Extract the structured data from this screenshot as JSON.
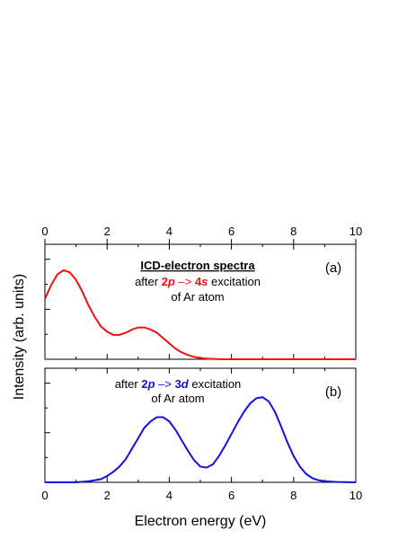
{
  "chart_data": [
    {
      "type": "line",
      "panel_tag": "(a)",
      "annotation": {
        "title": "ICD-electron spectra",
        "line1": {
          "pre": "after ",
          "a": "2",
          "b": "p",
          "arrow": " –> ",
          "c": "4",
          "d": "s",
          "post": " excitation"
        },
        "line2": "of Ar atom",
        "accent": "#ee1111"
      },
      "series": [
        {
          "color": "#ee1111",
          "x": [
            0,
            0.2,
            0.4,
            0.6,
            0.8,
            1.0,
            1.2,
            1.4,
            1.6,
            1.8,
            2.0,
            2.2,
            2.4,
            2.6,
            2.8,
            3.0,
            3.2,
            3.4,
            3.6,
            3.8,
            4.0,
            4.2,
            4.4,
            4.6,
            4.8,
            5.0,
            5.2,
            5.4,
            5.6,
            6.0,
            7.0,
            8.0,
            9.0,
            10.0
          ],
          "y": [
            0.57,
            0.7,
            0.8,
            0.84,
            0.82,
            0.75,
            0.64,
            0.51,
            0.4,
            0.31,
            0.26,
            0.23,
            0.23,
            0.25,
            0.28,
            0.3,
            0.3,
            0.28,
            0.25,
            0.2,
            0.15,
            0.1,
            0.065,
            0.04,
            0.022,
            0.012,
            0.006,
            0.003,
            0.001,
            0,
            0,
            0,
            0,
            0
          ]
        }
      ],
      "xlim": [
        0,
        10
      ],
      "ylim": [
        0,
        1
      ],
      "xticks": [
        "0",
        "2",
        "4",
        "6",
        "8",
        "10"
      ],
      "grid": false
    },
    {
      "type": "line",
      "panel_tag": "(b)",
      "annotation": {
        "line1": {
          "pre": "after ",
          "a": "2",
          "b": "p",
          "arrow": " –> ",
          "c": "3",
          "d": "d",
          "post": " excitation"
        },
        "line2": "of Ar atom",
        "accent": "#1111dd"
      },
      "series": [
        {
          "color": "#1111dd",
          "x": [
            0,
            1.0,
            1.4,
            1.8,
            2.0,
            2.2,
            2.4,
            2.6,
            2.8,
            3.0,
            3.2,
            3.4,
            3.6,
            3.8,
            4.0,
            4.2,
            4.4,
            4.6,
            4.8,
            5.0,
            5.2,
            5.4,
            5.6,
            5.8,
            6.0,
            6.2,
            6.4,
            6.6,
            6.8,
            7.0,
            7.2,
            7.4,
            7.6,
            7.8,
            8.0,
            8.2,
            8.4,
            8.6,
            8.8,
            9.0,
            9.4,
            10.0
          ],
          "y": [
            0,
            0,
            0.01,
            0.03,
            0.06,
            0.1,
            0.15,
            0.22,
            0.32,
            0.42,
            0.52,
            0.58,
            0.62,
            0.62,
            0.58,
            0.5,
            0.4,
            0.3,
            0.21,
            0.15,
            0.14,
            0.17,
            0.25,
            0.35,
            0.46,
            0.57,
            0.67,
            0.75,
            0.8,
            0.81,
            0.77,
            0.67,
            0.53,
            0.38,
            0.25,
            0.15,
            0.08,
            0.04,
            0.02,
            0.01,
            0.003,
            0
          ]
        }
      ],
      "xlim": [
        0,
        10
      ],
      "ylim": [
        0,
        1
      ],
      "xticks": [
        "0",
        "2",
        "4",
        "6",
        "8",
        "10"
      ],
      "grid": false
    }
  ],
  "xlabel": "Electron energy (eV)",
  "ylabel": "Intensity (arb. units)"
}
